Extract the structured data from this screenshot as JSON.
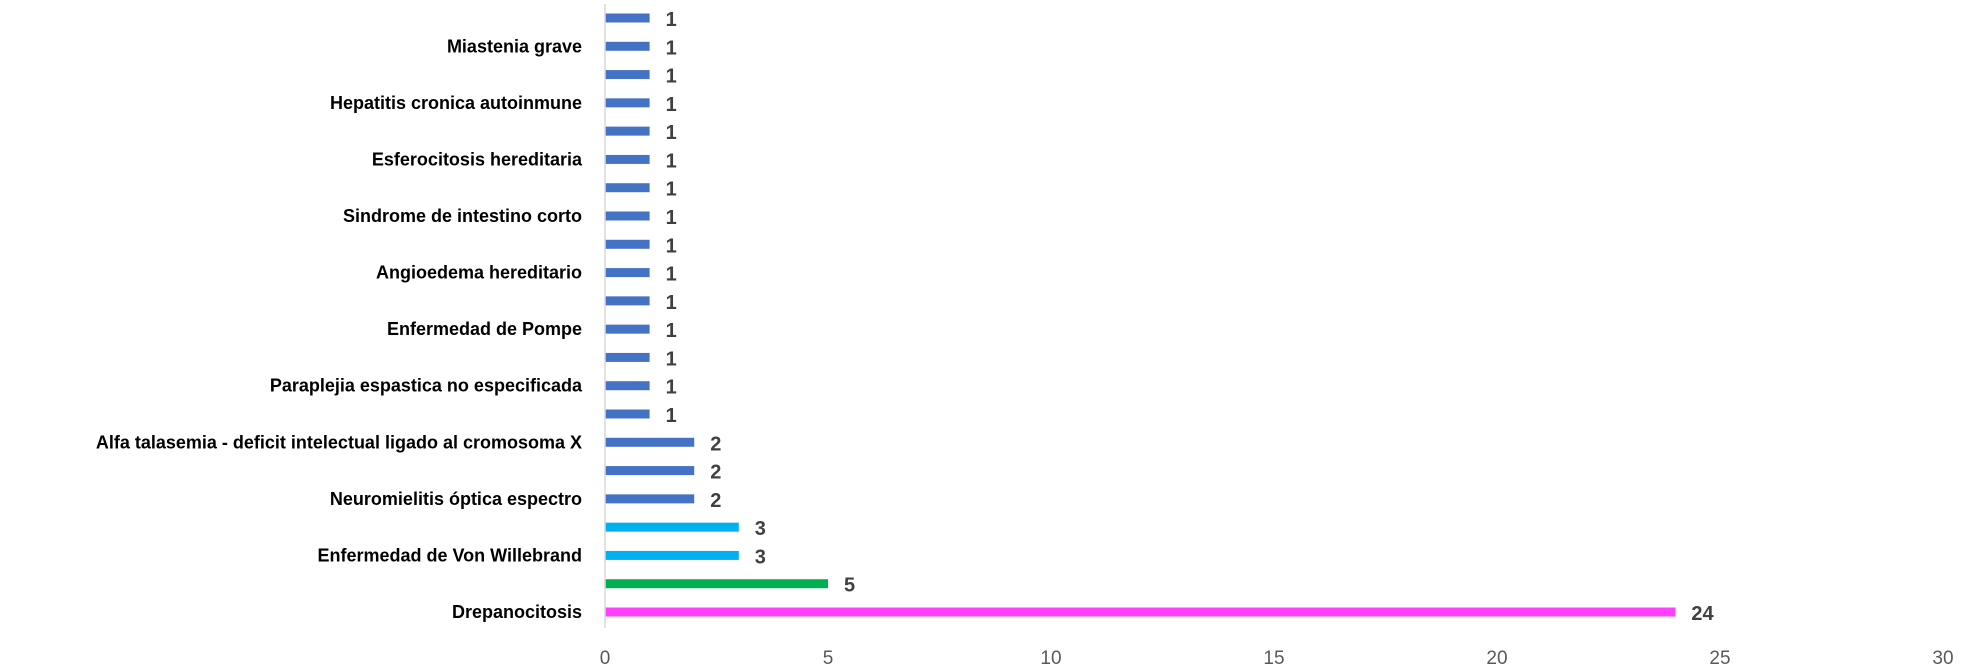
{
  "chart_data": {
    "type": "bar",
    "orientation": "horizontal",
    "categories": [
      "",
      "Miastenia grave",
      "",
      "Hepatitis cronica autoinmune",
      "",
      "Esferocitosis hereditaria",
      "",
      "Sindrome de intestino corto",
      "",
      "Angioedema hereditario",
      "",
      "Enfermedad de Pompe",
      "",
      "Paraplejia espastica no especificada",
      "",
      "Alfa talasemia - deficit intelectual ligado al cromosoma X",
      "",
      "Neuromielitis óptica espectro",
      "",
      "Enfermedad de Von Willebrand",
      "",
      "Drepanocitosis"
    ],
    "values": [
      1,
      1,
      1,
      1,
      1,
      1,
      1,
      1,
      1,
      1,
      1,
      1,
      1,
      1,
      1,
      2,
      2,
      2,
      3,
      3,
      5,
      24
    ],
    "bar_colors": [
      "#4472C4",
      "#4472C4",
      "#4472C4",
      "#4472C4",
      "#4472C4",
      "#4472C4",
      "#4472C4",
      "#4472C4",
      "#4472C4",
      "#4472C4",
      "#4472C4",
      "#4472C4",
      "#4472C4",
      "#4472C4",
      "#4472C4",
      "#4472C4",
      "#4472C4",
      "#4472C4",
      "#00B0F0",
      "#00B0F0",
      "#00B050",
      "#FF40FF"
    ],
    "xlim": [
      0,
      30
    ],
    "xticks": [
      "0",
      "5",
      "10",
      "15",
      "20",
      "25",
      "30"
    ],
    "title": "",
    "xlabel": "",
    "ylabel": "",
    "grid": false,
    "legend": "none",
    "data_labels": true
  }
}
